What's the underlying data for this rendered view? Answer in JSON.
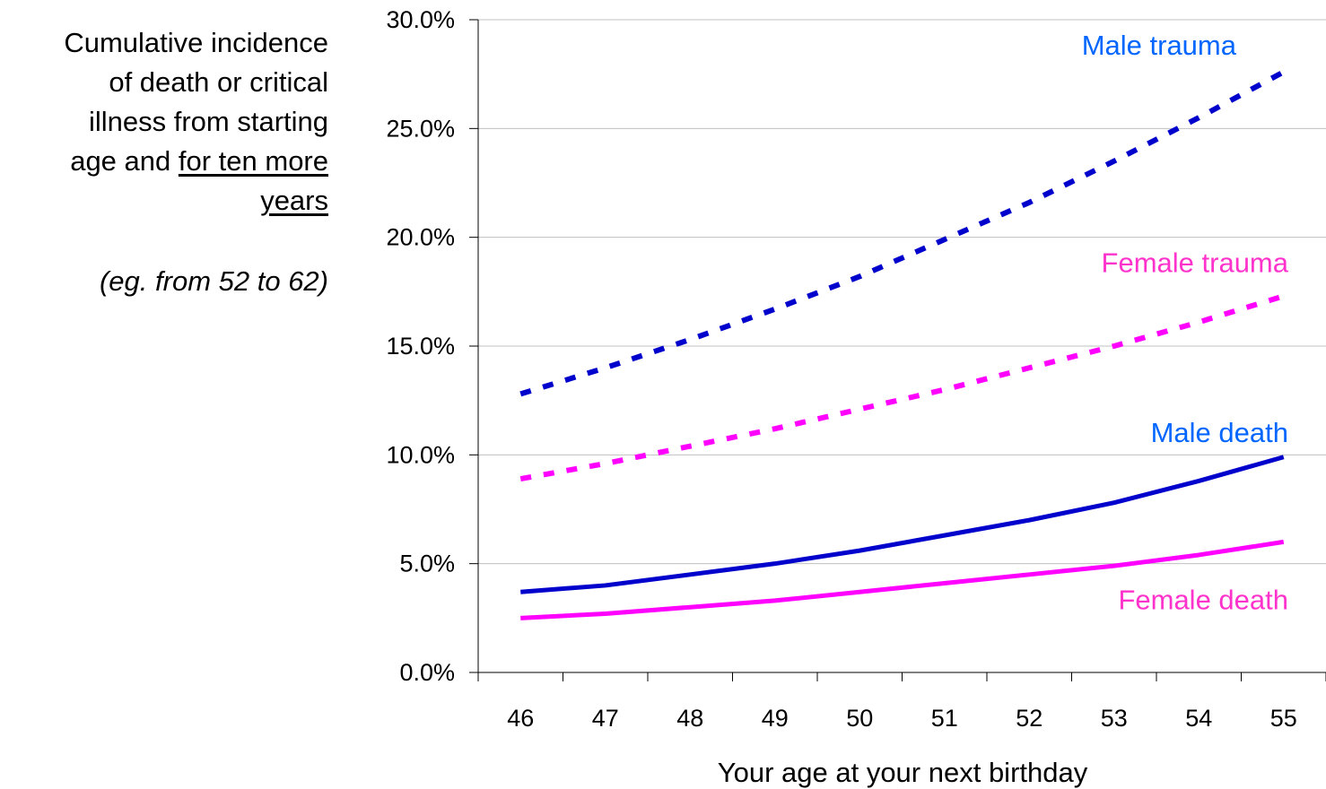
{
  "side_text": {
    "line1": "Cumulative incidence",
    "line2": "of death or critical",
    "line3": "illness from starting",
    "line4_plain": "age and ",
    "line4_underlined": "for ten more",
    "line5_underlined": "years",
    "note": "(eg. from 52 to 62)"
  },
  "chart_data": {
    "type": "line",
    "title": "",
    "xlabel": "Your age at your next birthday",
    "ylabel": "",
    "x": [
      46,
      47,
      48,
      49,
      50,
      51,
      52,
      53,
      54,
      55
    ],
    "ylim": [
      0,
      0.3
    ],
    "yticks": [
      0,
      0.05,
      0.1,
      0.15,
      0.2,
      0.25,
      0.3
    ],
    "ytick_labels": [
      "0.0%",
      "5.0%",
      "10.0%",
      "15.0%",
      "20.0%",
      "25.0%",
      "30.0%"
    ],
    "grid": "horizontal",
    "series": [
      {
        "name": "Male trauma",
        "style": "dotted",
        "color": "#0000cc",
        "label_color": "#0066ff",
        "values": [
          0.128,
          0.14,
          0.153,
          0.167,
          0.182,
          0.199,
          0.216,
          0.235,
          0.255,
          0.276
        ]
      },
      {
        "name": "Female trauma",
        "style": "dotted",
        "color": "#ff00ff",
        "label_color": "#ff33cc",
        "values": [
          0.089,
          0.096,
          0.104,
          0.112,
          0.121,
          0.13,
          0.14,
          0.15,
          0.161,
          0.173
        ]
      },
      {
        "name": "Male death",
        "style": "solid",
        "color": "#0000cc",
        "label_color": "#0066ff",
        "values": [
          0.037,
          0.04,
          0.045,
          0.05,
          0.056,
          0.063,
          0.07,
          0.078,
          0.088,
          0.099
        ]
      },
      {
        "name": "Female death",
        "style": "solid",
        "color": "#ff00ff",
        "label_color": "#ff33cc",
        "values": [
          0.025,
          0.027,
          0.03,
          0.033,
          0.037,
          0.041,
          0.045,
          0.049,
          0.054,
          0.06
        ]
      }
    ]
  }
}
